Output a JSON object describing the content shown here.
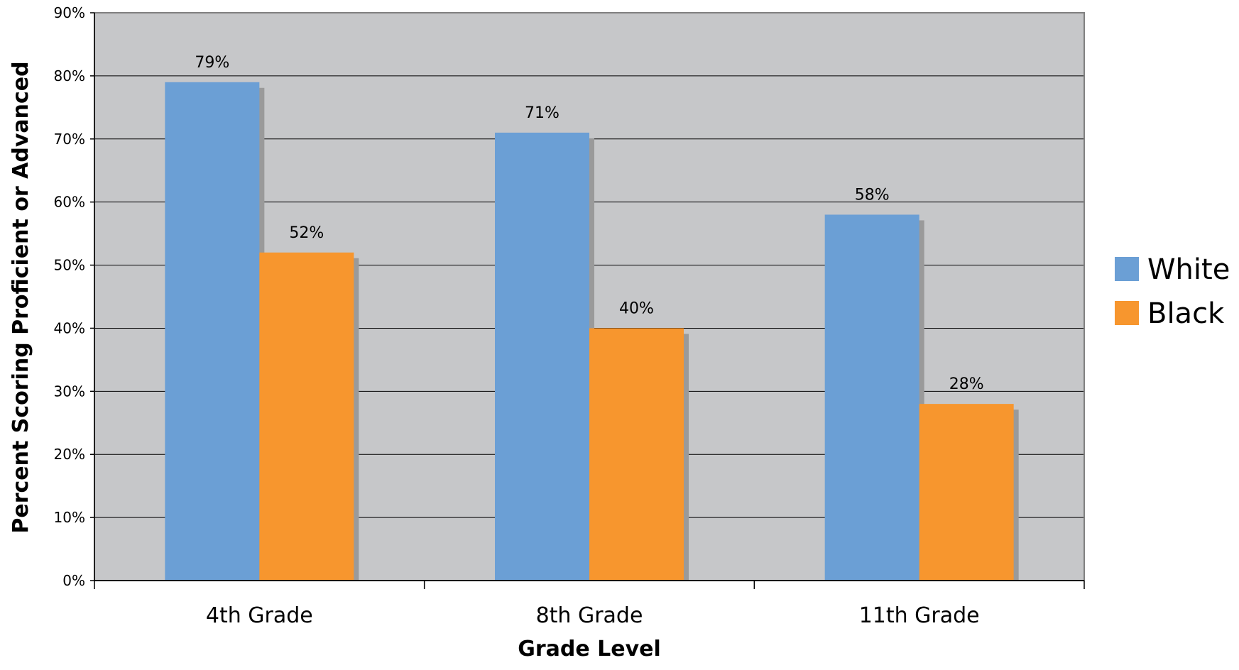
{
  "chart_data": {
    "type": "bar",
    "title": "",
    "xlabel": "Grade Level",
    "ylabel": "Percent Scoring Proficient or Advanced",
    "categories": [
      "4th Grade",
      "8th Grade",
      "11th Grade"
    ],
    "series": [
      {
        "name": "White",
        "values": [
          79,
          71,
          58
        ],
        "labels": [
          "79%",
          "71%",
          "58%"
        ],
        "color": "#6b9fd5"
      },
      {
        "name": "Black",
        "values": [
          52,
          40,
          28
        ],
        "labels": [
          "52%",
          "40%",
          "28%"
        ],
        "color": "#f7962e"
      }
    ],
    "ylim": [
      0,
      90
    ],
    "yticks": [
      0,
      10,
      20,
      30,
      40,
      50,
      60,
      70,
      80,
      90
    ],
    "ytick_labels": [
      "0%",
      "10%",
      "20%",
      "30%",
      "40%",
      "50%",
      "60%",
      "70%",
      "80%",
      "90%"
    ],
    "grid": true,
    "legend_position": "right",
    "plot_background": "#c6c7c9",
    "shadow_color": "#9a9a9a"
  }
}
